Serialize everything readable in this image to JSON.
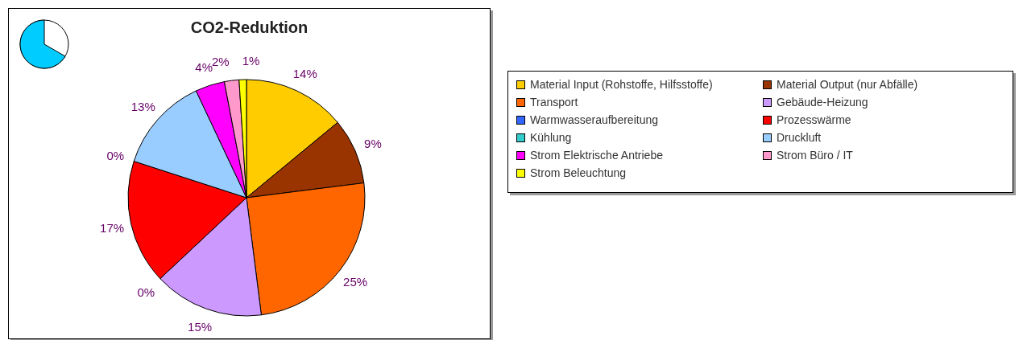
{
  "chart_data": {
    "type": "pie",
    "title": "CO2-Reduktion",
    "categories": [
      "Material Input (Rohstoffe, Hilfsstoffe)",
      "Material Output (nur Abfälle)",
      "Transport",
      "Gebäude-Heizung",
      "Warmwasseraufbereitung",
      "Prozesswärme",
      "Kühlung",
      "Druckluft",
      "Strom Elektrische Antriebe",
      "Strom Büro / IT",
      "Strom Beleuchtung"
    ],
    "values": [
      14,
      9,
      25,
      15,
      0,
      17,
      0,
      13,
      4,
      2,
      1
    ],
    "value_labels": [
      "14%",
      "9%",
      "25%",
      "15%",
      "0%",
      "17%",
      "0%",
      "13%",
      "4%",
      "2%",
      "1%"
    ],
    "colors": [
      "#ffcc00",
      "#993300",
      "#ff6600",
      "#cc99ff",
      "#3366ff",
      "#ff0000",
      "#33cccc",
      "#99ccff",
      "#ff00ff",
      "#ff99cc",
      "#ffff00"
    ],
    "legend": "right"
  }
}
